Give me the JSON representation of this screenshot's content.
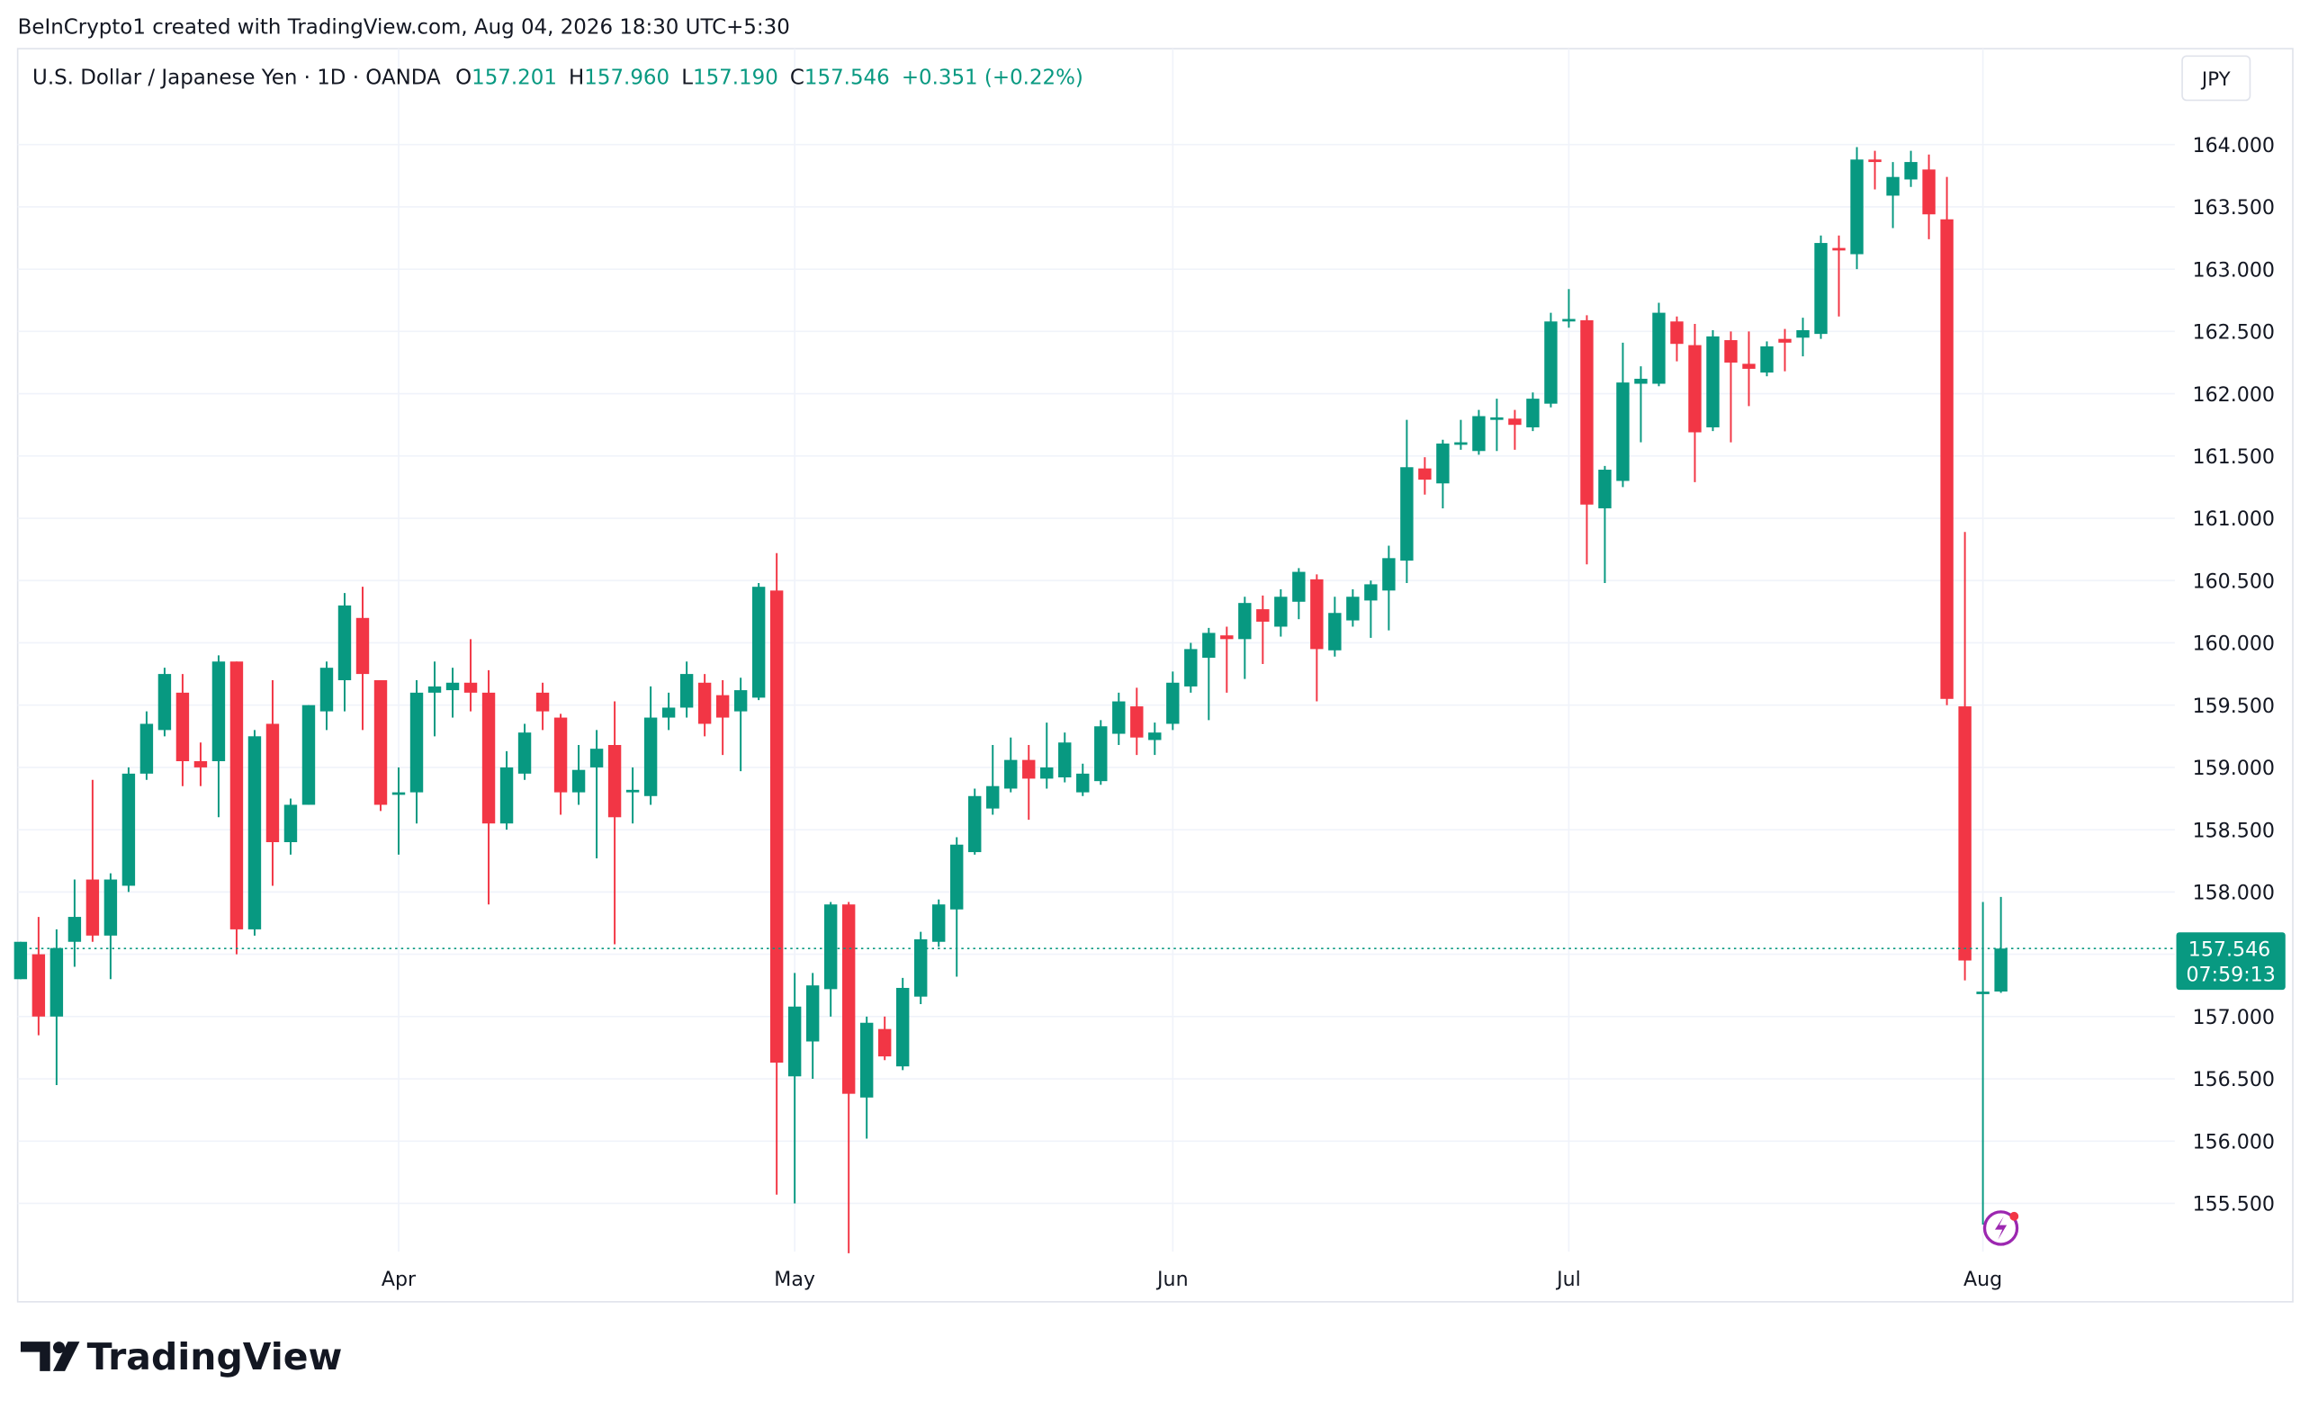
{
  "header": {
    "caption": "BeInCrypto1 created with TradingView.com, Aug 04, 2026 18:30 UTC+5:30"
  },
  "chart_data": {
    "type": "candlestick",
    "title": "U.S. Dollar / Japanese Yen · 1D · OANDA",
    "legend_values": [
      {
        "key": "O",
        "value": "157.201"
      },
      {
        "key": "H",
        "value": "157.960"
      },
      {
        "key": "L",
        "value": "157.190"
      },
      {
        "key": "C",
        "value": "157.546"
      }
    ],
    "change": "+0.351 (+0.22%)",
    "currency": "JPY",
    "countdown": "07:59:13",
    "up_color": "#089981",
    "down_color": "#f23645",
    "categories": [
      null,
      null,
      null,
      null,
      null,
      null,
      null,
      null,
      null,
      null,
      null,
      null,
      null,
      null,
      null,
      null,
      null,
      null,
      null,
      null,
      null,
      "Apr",
      null,
      null,
      null,
      null,
      null,
      null,
      null,
      null,
      null,
      null,
      null,
      null,
      null,
      null,
      null,
      null,
      null,
      null,
      null,
      null,
      null,
      "May",
      null,
      null,
      null,
      null,
      null,
      null,
      null,
      null,
      null,
      null,
      null,
      null,
      null,
      null,
      null,
      null,
      null,
      null,
      null,
      null,
      "Jun",
      null,
      null,
      null,
      null,
      null,
      null,
      null,
      null,
      null,
      null,
      null,
      null,
      null,
      null,
      null,
      null,
      null,
      null,
      null,
      null,
      null,
      "Jul",
      null,
      null,
      null,
      null,
      null,
      null,
      null,
      null,
      null,
      null,
      null,
      null,
      null,
      null,
      null,
      null,
      null,
      null,
      null,
      null,
      null,
      null,
      "Aug",
      null
    ],
    "open": [
      157.3,
      157.5,
      157.0,
      157.6,
      158.1,
      157.65,
      158.05,
      158.95,
      159.3,
      159.6,
      159.05,
      159.05,
      159.85,
      157.7,
      159.35,
      158.4,
      158.7,
      159.45,
      159.7,
      160.2,
      159.7,
      158.78,
      158.8,
      159.6,
      159.62,
      159.68,
      159.6,
      158.55,
      158.95,
      159.6,
      159.4,
      158.8,
      159.0,
      159.18,
      158.8,
      158.77,
      159.4,
      159.48,
      159.68,
      159.58,
      159.45,
      159.56,
      160.42,
      156.52,
      156.8,
      157.22,
      157.9,
      156.35,
      156.9,
      156.6,
      157.16,
      157.6,
      157.86,
      158.32,
      158.67,
      158.83,
      159.06,
      158.91,
      158.92,
      158.8,
      158.89,
      159.27,
      159.49,
      159.22,
      159.35,
      159.65,
      159.88,
      160.06,
      160.03,
      160.27,
      160.13,
      160.33,
      160.51,
      159.94,
      160.18,
      160.34,
      160.42,
      160.66,
      161.4,
      161.28,
      161.59,
      161.54,
      161.79,
      161.8,
      161.73,
      161.92,
      162.58,
      162.59,
      161.08,
      161.3,
      162.08,
      162.08,
      162.58,
      162.39,
      161.73,
      162.43,
      162.24,
      162.17,
      162.44,
      162.45,
      162.48,
      163.17,
      163.12,
      163.88,
      163.59,
      163.72,
      163.8,
      163.4,
      159.49,
      157.18,
      157.201
    ],
    "high": [
      157.6,
      157.8,
      157.7,
      158.1,
      158.9,
      158.15,
      159.0,
      159.45,
      159.8,
      159.75,
      159.2,
      159.9,
      159.85,
      159.3,
      159.7,
      158.75,
      159.5,
      159.85,
      160.4,
      160.45,
      159.7,
      159.0,
      159.7,
      159.85,
      159.8,
      160.03,
      159.78,
      159.13,
      159.35,
      159.68,
      159.43,
      159.18,
      159.3,
      159.53,
      159.0,
      159.65,
      159.6,
      159.85,
      159.75,
      159.7,
      159.72,
      160.48,
      160.72,
      157.35,
      157.35,
      157.92,
      157.92,
      157.0,
      157.0,
      157.31,
      157.68,
      157.94,
      158.44,
      158.83,
      159.18,
      159.24,
      159.18,
      159.36,
      159.28,
      159.03,
      159.38,
      159.6,
      159.64,
      159.36,
      159.77,
      160.0,
      160.12,
      160.13,
      160.37,
      160.38,
      160.43,
      160.6,
      160.55,
      160.37,
      160.43,
      160.5,
      160.78,
      161.79,
      161.49,
      161.63,
      161.79,
      161.87,
      161.96,
      161.87,
      162.01,
      162.65,
      162.84,
      162.63,
      161.42,
      162.41,
      162.22,
      162.73,
      162.62,
      162.56,
      162.51,
      162.5,
      162.5,
      162.42,
      162.52,
      162.61,
      163.27,
      163.27,
      163.98,
      163.95,
      163.86,
      163.95,
      163.92,
      163.74,
      160.89,
      157.92,
      157.96
    ],
    "low": [
      157.3,
      156.85,
      156.45,
      157.4,
      157.6,
      157.3,
      158.0,
      158.9,
      159.25,
      158.85,
      158.85,
      158.6,
      157.5,
      157.65,
      158.05,
      158.3,
      158.7,
      159.3,
      159.45,
      159.3,
      158.65,
      158.3,
      158.55,
      159.25,
      159.4,
      159.45,
      157.9,
      158.5,
      158.9,
      159.3,
      158.62,
      158.7,
      158.27,
      157.58,
      158.55,
      158.7,
      159.3,
      159.4,
      159.25,
      159.1,
      158.97,
      159.54,
      155.57,
      155.5,
      156.5,
      157.0,
      155.1,
      156.02,
      156.65,
      156.57,
      157.1,
      157.56,
      157.32,
      158.3,
      158.62,
      158.8,
      158.58,
      158.83,
      158.88,
      158.77,
      158.86,
      159.18,
      159.1,
      159.1,
      159.3,
      159.6,
      159.38,
      159.6,
      159.71,
      159.83,
      160.05,
      160.19,
      159.53,
      159.89,
      160.13,
      160.04,
      160.1,
      160.48,
      161.19,
      161.08,
      161.55,
      161.51,
      161.54,
      161.55,
      161.7,
      161.89,
      162.53,
      160.63,
      160.48,
      161.25,
      161.61,
      162.06,
      162.26,
      161.29,
      161.7,
      161.61,
      161.9,
      162.14,
      162.18,
      162.3,
      162.44,
      162.62,
      163.0,
      163.64,
      163.33,
      163.66,
      163.24,
      159.5,
      157.29,
      155.33,
      157.19
    ],
    "close": [
      157.6,
      157.0,
      157.55,
      157.8,
      157.65,
      158.1,
      158.95,
      159.35,
      159.75,
      159.05,
      159.0,
      159.85,
      157.7,
      159.25,
      158.4,
      158.7,
      159.5,
      159.8,
      160.3,
      159.75,
      158.7,
      158.8,
      159.6,
      159.65,
      159.68,
      159.6,
      158.55,
      159.0,
      159.28,
      159.45,
      158.8,
      158.98,
      159.15,
      158.6,
      158.82,
      159.4,
      159.48,
      159.75,
      159.35,
      159.4,
      159.62,
      160.45,
      156.63,
      157.08,
      157.25,
      157.9,
      156.38,
      156.95,
      156.68,
      157.23,
      157.62,
      157.9,
      158.38,
      158.77,
      158.85,
      159.06,
      158.91,
      159.0,
      159.2,
      158.95,
      159.33,
      159.53,
      159.24,
      159.28,
      159.68,
      159.95,
      160.08,
      160.03,
      160.32,
      160.17,
      160.37,
      160.57,
      159.95,
      160.24,
      160.37,
      160.47,
      160.68,
      161.41,
      161.31,
      161.6,
      161.61,
      161.82,
      161.81,
      161.75,
      161.96,
      162.58,
      162.6,
      161.11,
      161.39,
      162.09,
      162.12,
      162.65,
      162.4,
      161.69,
      162.46,
      162.25,
      162.2,
      162.38,
      162.41,
      162.51,
      163.21,
      163.15,
      163.88,
      163.86,
      163.74,
      163.86,
      163.44,
      159.55,
      157.45,
      157.2,
      157.546
    ],
    "xlim": [
      -0.16,
      119.66
    ],
    "ylim": [
      154.71,
      164.77
    ],
    "yticks": [
      {
        "value": 155.5,
        "label": "155.500"
      },
      {
        "value": 156,
        "label": "156.000"
      },
      {
        "value": 156.5,
        "label": "156.500"
      },
      {
        "value": 157,
        "label": "157.000"
      },
      {
        "value": 157.5,
        "label": "157.500"
      },
      {
        "value": 158,
        "label": "158.000"
      },
      {
        "value": 158.5,
        "label": "158.500"
      },
      {
        "value": 159,
        "label": "159.000"
      },
      {
        "value": 159.5,
        "label": "159.500"
      },
      {
        "value": 160,
        "label": "160.000"
      },
      {
        "value": 160.5,
        "label": "160.500"
      },
      {
        "value": 161,
        "label": "161.000"
      },
      {
        "value": 161.5,
        "label": "161.500"
      },
      {
        "value": 162,
        "label": "162.000"
      },
      {
        "value": 162.5,
        "label": "162.500"
      },
      {
        "value": 163,
        "label": "163.000"
      },
      {
        "value": 163.5,
        "label": "163.500"
      },
      {
        "value": 164,
        "label": "164.000"
      }
    ],
    "grid": true
  },
  "footer": {
    "logo": "TradingView"
  }
}
